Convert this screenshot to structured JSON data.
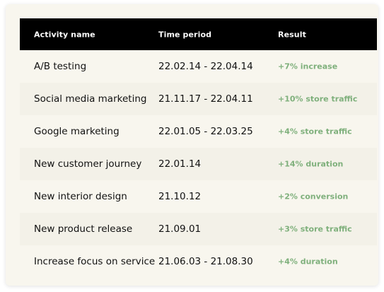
{
  "table": {
    "headers": {
      "activity": "Activity name",
      "period": "Time period",
      "result": "Result"
    },
    "rows": [
      {
        "activity": "A/B testing",
        "period": "22.02.14 - 22.04.14",
        "result": "+7% increase"
      },
      {
        "activity": "Social media marketing",
        "period": "21.11.17 - 22.04.11",
        "result": "+10% store traffic"
      },
      {
        "activity": "Google marketing",
        "period": "22.01.05 - 22.03.25",
        "result": "+4% store traffic"
      },
      {
        "activity": "New customer journey",
        "period": "22.01.14",
        "result": "+14% duration"
      },
      {
        "activity": "New interior design",
        "period": "21.10.12",
        "result": "+2% conversion"
      },
      {
        "activity": "New product release",
        "period": "21.09.01",
        "result": "+3% store traffic"
      },
      {
        "activity": "Increase focus on service",
        "period": "21.06.03 - 21.08.30",
        "result": "+4% duration"
      }
    ]
  },
  "colors": {
    "header_bg": "#000000",
    "result_text": "#7fb07c",
    "row_even": "#f3f1e8",
    "row_odd": "#f8f6ee"
  }
}
